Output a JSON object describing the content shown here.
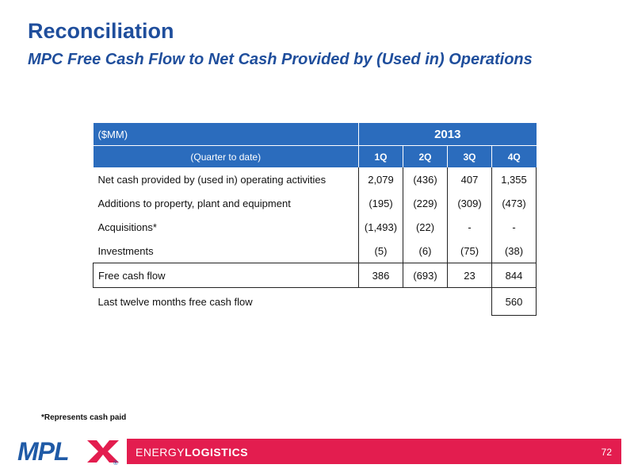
{
  "title": "Reconciliation",
  "subtitle": "MPC Free Cash Flow to Net Cash Provided by (Used in) Operations",
  "table": {
    "unit_label": "($MM)",
    "year": "2013",
    "period_label": "(Quarter to date)",
    "quarters": [
      "1Q",
      "2Q",
      "3Q",
      "4Q"
    ],
    "rows": [
      {
        "label": "Net cash provided by (used in) operating activities",
        "values": [
          "2,079",
          "(436)",
          "407",
          "1,355"
        ]
      },
      {
        "label": "Additions to property, plant and equipment",
        "values": [
          "(195)",
          "(229)",
          "(309)",
          "(473)"
        ]
      },
      {
        "label": "Acquisitions*",
        "values": [
          "(1,493)",
          "(22)",
          "-",
          "-"
        ]
      },
      {
        "label": "Investments",
        "values": [
          "(5)",
          "(6)",
          "(75)",
          "(38)"
        ]
      },
      {
        "label": "Free cash flow",
        "values": [
          "386",
          "(693)",
          "23",
          "844"
        ]
      }
    ],
    "ltm_label": "Last twelve months free cash flow",
    "ltm_value": "560"
  },
  "footnote": "*Represents cash paid",
  "footer": {
    "logo_text": "MPLX",
    "logo_registered": "®",
    "brand_light": "ENERGY",
    "brand_bold": "LOGISTICS",
    "page_number": "72"
  },
  "colors": {
    "title": "#1f4e9c",
    "header_bg": "#2b6cbd",
    "footer_bar": "#e31d4f",
    "logo_blue": "#1f5aa6",
    "logo_red": "#e31d4f"
  }
}
